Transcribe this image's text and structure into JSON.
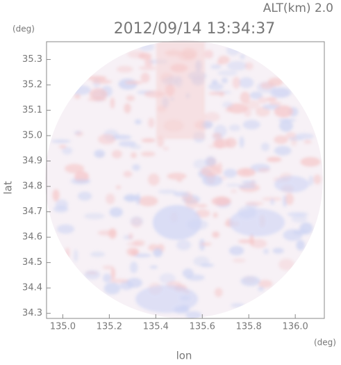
{
  "chart_data": {
    "type": "image",
    "title": "2012/09/14 13:34:37",
    "subtitle": "ALT(km) 2.0",
    "x_label": "lon",
    "y_label": "lat",
    "x_unit": "(deg)",
    "y_unit": "(deg)",
    "xlim": [
      134.93,
      136.125
    ],
    "ylim": [
      34.28,
      35.37
    ],
    "xticks": [
      {
        "value": 135,
        "label": "135.0"
      },
      135.2,
      135.4,
      135.6,
      135.8,
      {
        "value": 136,
        "label": "136.0"
      }
    ],
    "yticks": [
      34.3,
      34.4,
      34.5,
      34.6,
      34.7,
      34.8,
      34.9,
      {
        "value": 35,
        "label": "35.0"
      },
      35.1,
      35.2,
      35.3
    ]
  }
}
